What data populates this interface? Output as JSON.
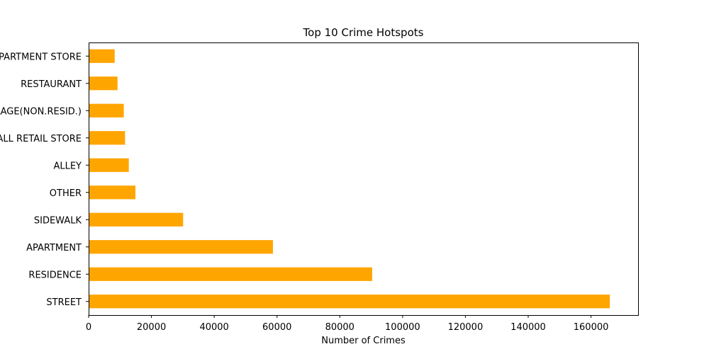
{
  "chart_data": {
    "type": "bar",
    "orientation": "horizontal",
    "title": "Top 10 Crime Hotspots",
    "xlabel": "Number of Crimes",
    "ylabel": "",
    "categories": [
      "STREET",
      "RESIDENCE",
      "APARTMENT",
      "SIDEWALK",
      "OTHER",
      "ALLEY",
      "SMALL RETAIL STORE",
      "PARKING LOT/GARAGE(NON.RESID.)",
      "RESTAURANT",
      "DEPARTMENT STORE"
    ],
    "values": [
      166000,
      90300,
      58700,
      30100,
      14900,
      12800,
      11600,
      11200,
      9200,
      8300
    ],
    "xlim": [
      0,
      175000
    ],
    "xticks": [
      0,
      20000,
      40000,
      60000,
      80000,
      100000,
      120000,
      140000,
      160000
    ],
    "bar_color": "#ffa500",
    "grid": false,
    "legend": "none"
  }
}
